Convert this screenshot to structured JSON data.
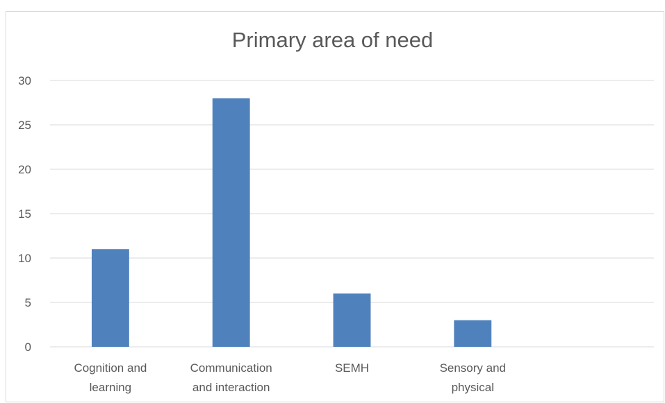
{
  "chart_data": {
    "type": "bar",
    "title": "Primary area of need",
    "categories": [
      [
        "Cognition and",
        "learning"
      ],
      [
        "Communication",
        "and interaction"
      ],
      [
        "SEMH"
      ],
      [
        "Sensory and",
        "physical"
      ],
      [
        ""
      ]
    ],
    "values": [
      11,
      28,
      6,
      3,
      null
    ],
    "ylim": [
      0,
      30
    ],
    "yticks": [
      0,
      5,
      10,
      15,
      20,
      25,
      30
    ],
    "grid": true,
    "bar_color": "#4f81bd",
    "grid_color": "#d9d9d9",
    "text_color": "#595959"
  }
}
